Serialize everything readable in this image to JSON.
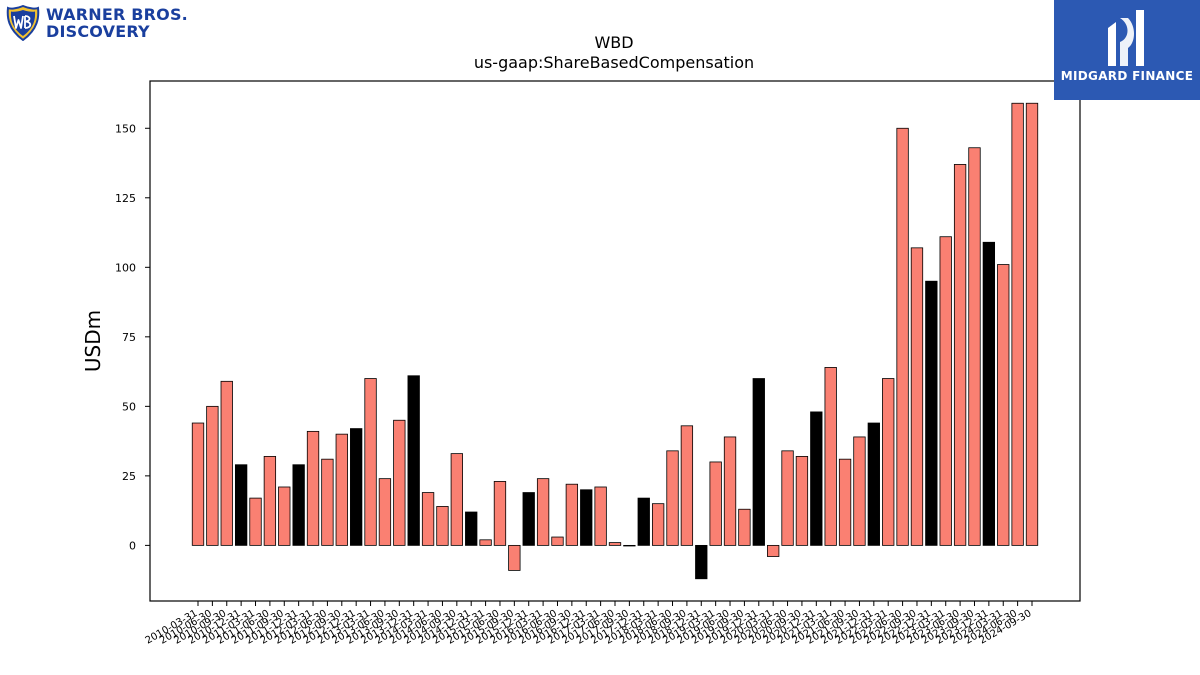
{
  "logos": {
    "left_line1": "WARNER BROS.",
    "left_line2": "DISCOVERY",
    "right_label": "MIDGARD FINANCE"
  },
  "colors": {
    "bar_default": "#fa8072",
    "bar_highlight": "#000000",
    "bar_edge": "#000000",
    "brand_blue": "#1a3f9e",
    "midgard_blue": "#2c59b3"
  },
  "chart_data": {
    "type": "bar",
    "title": "WBD",
    "subtitle": "us-gaap:ShareBasedCompensation",
    "xlabel": "",
    "ylabel": "USDm",
    "ylim": [
      -20,
      167
    ],
    "yticks": [
      0,
      25,
      50,
      75,
      100,
      125,
      150
    ],
    "grid": false,
    "categories": [
      "2010-03-31",
      "2010-06-30",
      "2010-09-30",
      "2010-12-31",
      "2011-03-31",
      "2011-06-30",
      "2011-09-30",
      "2011-12-31",
      "2012-03-31",
      "2012-06-30",
      "2012-09-30",
      "2012-12-31",
      "2013-03-31",
      "2013-06-30",
      "2013-09-30",
      "2013-12-31",
      "2014-03-31",
      "2014-06-30",
      "2014-09-30",
      "2014-12-31",
      "2015-03-31",
      "2015-06-30",
      "2015-09-30",
      "2015-12-31",
      "2016-03-31",
      "2016-06-30",
      "2016-09-30",
      "2016-12-31",
      "2017-03-31",
      "2017-06-30",
      "2017-09-30",
      "2017-12-31",
      "2018-03-31",
      "2018-06-30",
      "2018-09-30",
      "2018-12-31",
      "2019-03-31",
      "2019-06-30",
      "2019-09-30",
      "2019-12-31",
      "2020-03-31",
      "2020-06-30",
      "2020-09-30",
      "2020-12-31",
      "2021-03-31",
      "2021-06-30",
      "2021-09-30",
      "2021-12-31",
      "2022-03-31",
      "2022-06-30",
      "2022-09-30",
      "2022-12-31",
      "2023-03-31",
      "2023-06-30",
      "2023-09-30",
      "2023-12-31",
      "2024-03-31",
      "2024-06-30",
      "2024-09-30"
    ],
    "values": [
      44,
      50,
      59,
      29,
      17,
      32,
      21,
      29,
      41,
      31,
      40,
      42,
      60,
      24,
      45,
      61,
      19,
      14,
      33,
      12,
      2,
      23,
      -9,
      19,
      24,
      3,
      22,
      20,
      21,
      1,
      0,
      17,
      15,
      34,
      43,
      -12,
      30,
      39,
      13,
      60,
      -4,
      34,
      32,
      48,
      64,
      31,
      39,
      44,
      60,
      150,
      107,
      95,
      111,
      137,
      143,
      109,
      101,
      159,
      159
    ],
    "highlight": [
      false,
      false,
      false,
      true,
      false,
      false,
      false,
      true,
      false,
      false,
      false,
      true,
      false,
      false,
      false,
      true,
      false,
      false,
      false,
      true,
      false,
      false,
      false,
      true,
      false,
      false,
      false,
      true,
      false,
      false,
      false,
      true,
      false,
      false,
      false,
      true,
      false,
      false,
      false,
      true,
      false,
      false,
      false,
      true,
      false,
      false,
      false,
      true,
      false,
      false,
      false,
      true,
      false,
      false,
      false,
      true,
      false,
      false,
      false
    ]
  }
}
